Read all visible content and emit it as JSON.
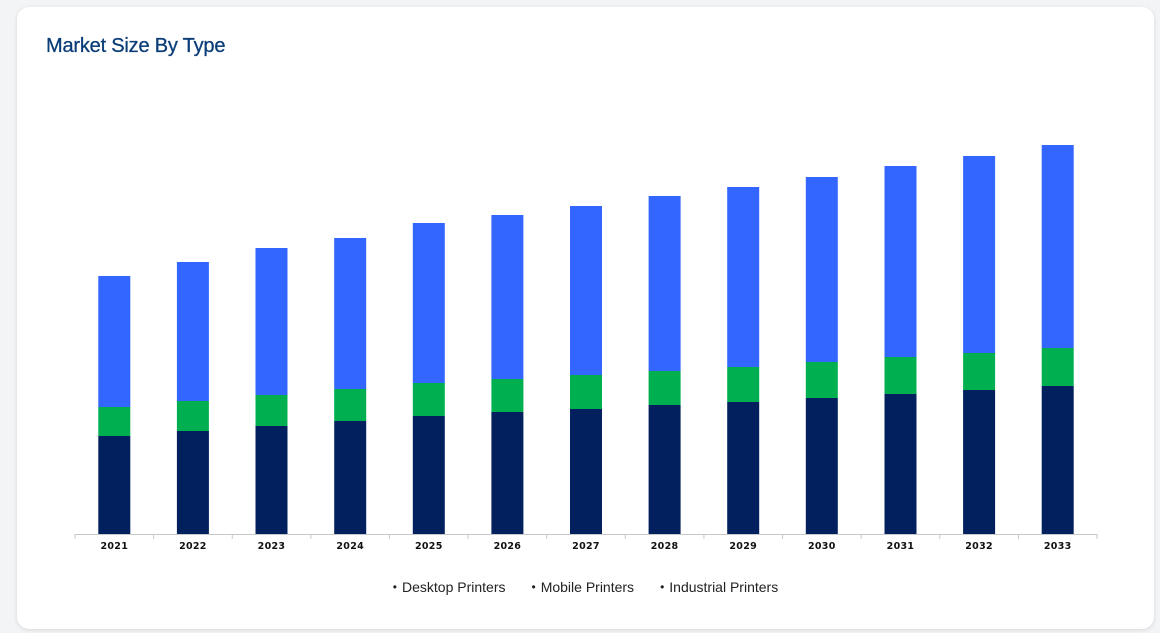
{
  "card": {
    "title": "Market Size By Type"
  },
  "chart_data": {
    "type": "bar",
    "stacked": true,
    "title": "Market Size By Type",
    "xlabel": "",
    "ylabel": "",
    "categories": [
      "2021",
      "2022",
      "2023",
      "2024",
      "2025",
      "2026",
      "2027",
      "2028",
      "2029",
      "2030",
      "2031",
      "2032",
      "2033"
    ],
    "series": [
      {
        "name": "Desktop Printers",
        "color": "#02205e",
        "values": [
          98,
          103,
          108,
          113,
          118,
          122,
          125,
          129,
          132,
          136,
          140,
          144,
          148
        ]
      },
      {
        "name": "Mobile Printers",
        "color": "#00b050",
        "values": [
          29,
          30,
          31,
          32,
          33,
          33,
          34,
          34,
          35,
          36,
          37,
          37,
          38
        ]
      },
      {
        "name": "Industrial Printers",
        "color": "#3366ff",
        "values": [
          131,
          139,
          147,
          151,
          160,
          164,
          169,
          175,
          180,
          185,
          191,
          197,
          203
        ]
      }
    ],
    "ylim": [
      0,
      400
    ],
    "grid": false,
    "legend_position": "bottom"
  }
}
